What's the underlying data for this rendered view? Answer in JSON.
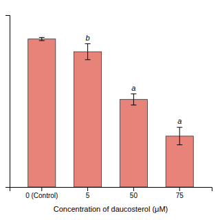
{
  "chart_data": {
    "type": "bar",
    "xlabel": "Concentration of daucosterol (μM)",
    "categories": [
      "0 (Control)",
      "5",
      "50",
      "75"
    ],
    "values": [
      93,
      85,
      55,
      32
    ],
    "errors": [
      1.0,
      5.0,
      3.5,
      5.5
    ],
    "significance_labels": [
      null,
      "b",
      "a",
      "a"
    ],
    "color": "#e8837a",
    "ylim": [
      0,
      108
    ],
    "yticks": [],
    "tick_labels": "x",
    "grid": false
  }
}
